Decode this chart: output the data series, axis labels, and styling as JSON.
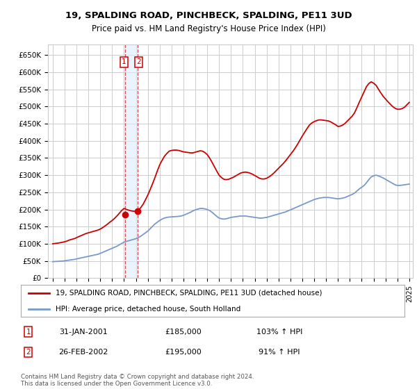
{
  "title": "19, SPALDING ROAD, PINCHBECK, SPALDING, PE11 3UD",
  "subtitle": "Price paid vs. HM Land Registry's House Price Index (HPI)",
  "ylim": [
    0,
    680000
  ],
  "yticks": [
    0,
    50000,
    100000,
    150000,
    200000,
    250000,
    300000,
    350000,
    400000,
    450000,
    500000,
    550000,
    600000,
    650000
  ],
  "ytick_labels": [
    "£0",
    "£50K",
    "£100K",
    "£150K",
    "£200K",
    "£250K",
    "£300K",
    "£350K",
    "£400K",
    "£450K",
    "£500K",
    "£550K",
    "£600K",
    "£650K"
  ],
  "background_color": "#ffffff",
  "grid_color": "#cccccc",
  "sale1_date": 2001.08,
  "sale1_price": 185000,
  "sale2_date": 2002.15,
  "sale2_price": 195000,
  "legend_line1": "19, SPALDING ROAD, PINCHBECK, SPALDING, PE11 3UD (detached house)",
  "legend_line2": "HPI: Average price, detached house, South Holland",
  "table_row1": [
    "1",
    "31-JAN-2001",
    "£185,000",
    "103% ↑ HPI"
  ],
  "table_row2": [
    "2",
    "26-FEB-2002",
    "£195,000",
    "91% ↑ HPI"
  ],
  "footer": "Contains HM Land Registry data © Crown copyright and database right 2024.\nThis data is licensed under the Open Government Licence v3.0.",
  "hpi_color": "#7799cc",
  "price_color": "#cc0000",
  "shade_color": "#ddeeff",
  "hpi_data_x": [
    1995.0,
    1995.1,
    1995.2,
    1995.3,
    1995.4,
    1995.5,
    1995.6,
    1995.7,
    1995.8,
    1995.9,
    1996.0,
    1996.1,
    1996.2,
    1996.3,
    1996.4,
    1996.5,
    1996.6,
    1996.7,
    1996.8,
    1996.9,
    1997.0,
    1997.2,
    1997.4,
    1997.6,
    1997.8,
    1998.0,
    1998.2,
    1998.4,
    1998.6,
    1998.8,
    1999.0,
    1999.2,
    1999.4,
    1999.6,
    1999.8,
    2000.0,
    2000.2,
    2000.4,
    2000.6,
    2000.8,
    2001.0,
    2001.2,
    2001.4,
    2001.6,
    2001.8,
    2002.0,
    2002.2,
    2002.4,
    2002.6,
    2002.8,
    2003.0,
    2003.2,
    2003.4,
    2003.6,
    2003.8,
    2004.0,
    2004.2,
    2004.4,
    2004.6,
    2004.8,
    2005.0,
    2005.2,
    2005.4,
    2005.6,
    2005.8,
    2006.0,
    2006.2,
    2006.4,
    2006.6,
    2006.8,
    2007.0,
    2007.2,
    2007.4,
    2007.6,
    2007.8,
    2008.0,
    2008.2,
    2008.4,
    2008.6,
    2008.8,
    2009.0,
    2009.2,
    2009.4,
    2009.6,
    2009.8,
    2010.0,
    2010.2,
    2010.4,
    2010.6,
    2010.8,
    2011.0,
    2011.2,
    2011.4,
    2011.6,
    2011.8,
    2012.0,
    2012.2,
    2012.4,
    2012.6,
    2012.8,
    2013.0,
    2013.2,
    2013.4,
    2013.6,
    2013.8,
    2014.0,
    2014.2,
    2014.4,
    2014.6,
    2014.8,
    2015.0,
    2015.2,
    2015.4,
    2015.6,
    2015.8,
    2016.0,
    2016.2,
    2016.4,
    2016.6,
    2016.8,
    2017.0,
    2017.2,
    2017.4,
    2017.6,
    2017.8,
    2018.0,
    2018.2,
    2018.4,
    2018.6,
    2018.8,
    2019.0,
    2019.2,
    2019.4,
    2019.6,
    2019.8,
    2020.0,
    2020.2,
    2020.4,
    2020.6,
    2020.8,
    2021.0,
    2021.2,
    2021.4,
    2021.6,
    2021.8,
    2022.0,
    2022.2,
    2022.4,
    2022.6,
    2022.8,
    2023.0,
    2023.2,
    2023.4,
    2023.6,
    2023.8,
    2024.0,
    2024.2,
    2024.4,
    2024.6,
    2024.8,
    2025.0
  ],
  "hpi_data_y": [
    48000,
    48200,
    48400,
    48600,
    48800,
    49000,
    49200,
    49500,
    49800,
    50000,
    50500,
    51000,
    51500,
    52000,
    52500,
    53000,
    53500,
    54000,
    54500,
    55000,
    56000,
    57500,
    59000,
    60500,
    62000,
    63500,
    65000,
    66500,
    68000,
    69500,
    72000,
    75000,
    78000,
    81000,
    84000,
    87000,
    90000,
    93000,
    97000,
    101000,
    105000,
    107000,
    109000,
    111000,
    113000,
    115000,
    118000,
    122000,
    127000,
    132000,
    137000,
    144000,
    151000,
    158000,
    163000,
    168000,
    172000,
    175000,
    177000,
    178000,
    178500,
    179000,
    179500,
    180000,
    181000,
    183000,
    186000,
    189000,
    192000,
    196000,
    199000,
    201000,
    203000,
    203000,
    202000,
    200000,
    197000,
    192000,
    186000,
    180000,
    175000,
    173000,
    172000,
    173000,
    175000,
    177000,
    178000,
    179000,
    180000,
    181000,
    181000,
    181000,
    180000,
    179000,
    178000,
    177000,
    176000,
    175000,
    175000,
    176000,
    177000,
    179000,
    181000,
    183000,
    185000,
    187000,
    189000,
    191000,
    193000,
    196000,
    199000,
    202000,
    205000,
    208000,
    211000,
    214000,
    217000,
    220000,
    223000,
    226000,
    229000,
    231000,
    233000,
    234000,
    235000,
    235000,
    235000,
    234000,
    233000,
    232000,
    231000,
    232000,
    233000,
    235000,
    238000,
    241000,
    244000,
    248000,
    254000,
    260000,
    265000,
    270000,
    278000,
    287000,
    295000,
    298000,
    300000,
    298000,
    295000,
    292000,
    288000,
    284000,
    280000,
    276000,
    272000,
    270000,
    270000,
    271000,
    272000,
    273000,
    274000
  ],
  "prop_data_x": [
    1995.0,
    1995.1,
    1995.2,
    1995.3,
    1995.4,
    1995.5,
    1995.6,
    1995.7,
    1995.8,
    1995.9,
    1996.0,
    1996.1,
    1996.2,
    1996.3,
    1996.4,
    1996.5,
    1996.6,
    1996.7,
    1996.8,
    1996.9,
    1997.0,
    1997.2,
    1997.4,
    1997.6,
    1997.8,
    1998.0,
    1998.2,
    1998.4,
    1998.6,
    1998.8,
    1999.0,
    1999.2,
    1999.4,
    1999.6,
    1999.8,
    2000.0,
    2000.2,
    2000.4,
    2000.6,
    2000.8,
    2001.0,
    2001.2,
    2001.4,
    2001.6,
    2001.8,
    2002.0,
    2002.2,
    2002.4,
    2002.6,
    2002.8,
    2003.0,
    2003.2,
    2003.4,
    2003.6,
    2003.8,
    2004.0,
    2004.2,
    2004.4,
    2004.6,
    2004.8,
    2005.0,
    2005.2,
    2005.4,
    2005.6,
    2005.8,
    2006.0,
    2006.2,
    2006.4,
    2006.6,
    2006.8,
    2007.0,
    2007.2,
    2007.4,
    2007.6,
    2007.8,
    2008.0,
    2008.2,
    2008.4,
    2008.6,
    2008.8,
    2009.0,
    2009.2,
    2009.4,
    2009.6,
    2009.8,
    2010.0,
    2010.2,
    2010.4,
    2010.6,
    2010.8,
    2011.0,
    2011.2,
    2011.4,
    2011.6,
    2011.8,
    2012.0,
    2012.2,
    2012.4,
    2012.6,
    2012.8,
    2013.0,
    2013.2,
    2013.4,
    2013.6,
    2013.8,
    2014.0,
    2014.2,
    2014.4,
    2014.6,
    2014.8,
    2015.0,
    2015.2,
    2015.4,
    2015.6,
    2015.8,
    2016.0,
    2016.2,
    2016.4,
    2016.6,
    2016.8,
    2017.0,
    2017.2,
    2017.4,
    2017.6,
    2017.8,
    2018.0,
    2018.2,
    2018.4,
    2018.6,
    2018.8,
    2019.0,
    2019.2,
    2019.4,
    2019.6,
    2019.8,
    2020.0,
    2020.2,
    2020.4,
    2020.6,
    2020.8,
    2021.0,
    2021.2,
    2021.4,
    2021.6,
    2021.8,
    2022.0,
    2022.2,
    2022.4,
    2022.6,
    2022.8,
    2023.0,
    2023.2,
    2023.4,
    2023.6,
    2023.8,
    2024.0,
    2024.2,
    2024.4,
    2024.6,
    2024.8,
    2025.0
  ],
  "prop_data_y": [
    100000,
    100500,
    101000,
    101500,
    102000,
    102500,
    103000,
    103800,
    104500,
    105000,
    106000,
    107000,
    108000,
    109500,
    111000,
    112000,
    113000,
    114000,
    115000,
    116000,
    118000,
    121000,
    124000,
    127000,
    130000,
    132000,
    134000,
    136000,
    138000,
    140000,
    143000,
    147000,
    152000,
    157000,
    163000,
    168000,
    174000,
    181000,
    189000,
    197000,
    203000,
    200000,
    198000,
    196000,
    195000,
    195000,
    198000,
    205000,
    215000,
    228000,
    242000,
    258000,
    275000,
    293000,
    312000,
    330000,
    343000,
    355000,
    363000,
    370000,
    372000,
    373000,
    373000,
    372000,
    370000,
    368000,
    367000,
    366000,
    365000,
    365000,
    367000,
    369000,
    371000,
    370000,
    366000,
    360000,
    350000,
    338000,
    325000,
    312000,
    300000,
    293000,
    288000,
    287000,
    288000,
    291000,
    294000,
    298000,
    302000,
    306000,
    308000,
    309000,
    308000,
    306000,
    303000,
    299000,
    295000,
    291000,
    289000,
    289000,
    291000,
    295000,
    300000,
    306000,
    313000,
    320000,
    327000,
    334000,
    342000,
    351000,
    360000,
    369000,
    379000,
    390000,
    402000,
    414000,
    425000,
    436000,
    446000,
    452000,
    456000,
    459000,
    461000,
    461000,
    460000,
    459000,
    458000,
    455000,
    451000,
    447000,
    442000,
    443000,
    446000,
    451000,
    458000,
    465000,
    472000,
    482000,
    497000,
    513000,
    528000,
    543000,
    558000,
    567000,
    572000,
    568000,
    562000,
    551000,
    540000,
    530000,
    522000,
    514000,
    507000,
    500000,
    495000,
    492000,
    492000,
    494000,
    498000,
    505000,
    512000
  ]
}
